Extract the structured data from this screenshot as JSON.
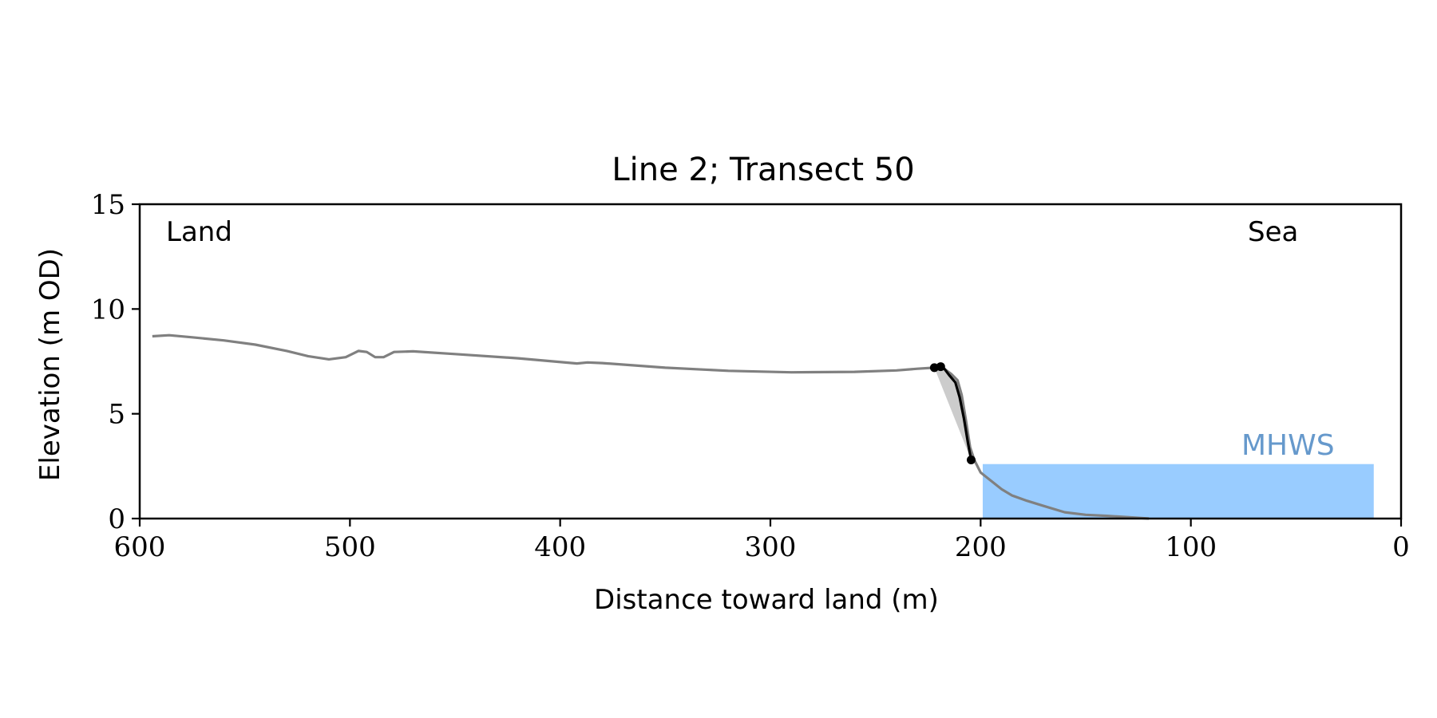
{
  "chart_data": {
    "type": "line",
    "title": "Line 2; Transect 50",
    "xlabel": "Distance toward land (m)",
    "ylabel": "Elevation (m OD)",
    "xlim": [
      600,
      0
    ],
    "ylim": [
      0,
      15
    ],
    "x_ticks": [
      600,
      500,
      400,
      300,
      200,
      100,
      0
    ],
    "y_ticks": [
      0,
      5,
      10,
      15
    ],
    "grid": false,
    "annotations": {
      "land": "Land",
      "sea": "Sea",
      "mhws": "MHWS"
    },
    "mhws": {
      "level": 2.6,
      "x_from": 199,
      "x_to": 13
    },
    "profile": [
      [
        594,
        8.7
      ],
      [
        586,
        8.75
      ],
      [
        575,
        8.65
      ],
      [
        560,
        8.5
      ],
      [
        545,
        8.3
      ],
      [
        530,
        8.0
      ],
      [
        520,
        7.75
      ],
      [
        510,
        7.6
      ],
      [
        502,
        7.7
      ],
      [
        496,
        8.0
      ],
      [
        492,
        7.95
      ],
      [
        488,
        7.7
      ],
      [
        484,
        7.7
      ],
      [
        479,
        7.95
      ],
      [
        470,
        7.98
      ],
      [
        450,
        7.85
      ],
      [
        420,
        7.65
      ],
      [
        392,
        7.4
      ],
      [
        387,
        7.45
      ],
      [
        380,
        7.42
      ],
      [
        350,
        7.2
      ],
      [
        320,
        7.05
      ],
      [
        290,
        6.98
      ],
      [
        260,
        7.0
      ],
      [
        240,
        7.07
      ],
      [
        230,
        7.15
      ],
      [
        222,
        7.2
      ],
      [
        218,
        7.2
      ],
      [
        214,
        6.9
      ],
      [
        211,
        6.6
      ],
      [
        209,
        5.9
      ],
      [
        207,
        4.7
      ],
      [
        205,
        3.4
      ],
      [
        203,
        2.8
      ],
      [
        200,
        2.2
      ],
      [
        195,
        1.8
      ],
      [
        190,
        1.4
      ],
      [
        185,
        1.1
      ],
      [
        178,
        0.85
      ],
      [
        170,
        0.6
      ],
      [
        160,
        0.3
      ],
      [
        150,
        0.18
      ],
      [
        140,
        0.13
      ],
      [
        130,
        0.07
      ],
      [
        120,
        0.0
      ]
    ],
    "cliff": [
      [
        222,
        7.2
      ],
      [
        218,
        7.25
      ],
      [
        215,
        6.85
      ],
      [
        212,
        6.5
      ],
      [
        210,
        5.8
      ],
      [
        208,
        4.8
      ],
      [
        206,
        3.6
      ],
      [
        204.5,
        2.8
      ]
    ],
    "cliff_points": [
      [
        222,
        7.2
      ],
      [
        219,
        7.25
      ],
      [
        204.5,
        2.8
      ]
    ],
    "cliff_fill_chord": [
      [
        222,
        7.2
      ],
      [
        204.5,
        2.8
      ]
    ],
    "colors": {
      "profile": "#808080",
      "cliff": "#000000",
      "mhws_fill": "#99ccff",
      "mhws_text": "#6699cc",
      "cliff_fill": "#cccccc",
      "axis": "#000000"
    }
  }
}
